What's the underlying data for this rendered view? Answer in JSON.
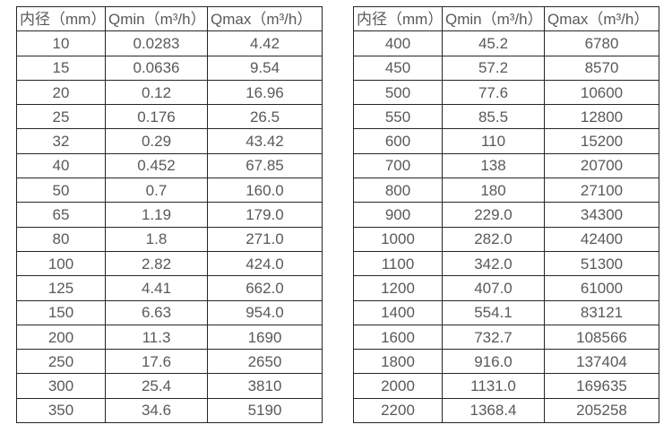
{
  "tables": [
    {
      "name": "flow-spec-table-small-diameters",
      "headers": [
        "内径（mm）",
        "Qmin（m³/h）",
        "Qmax（m³/h）"
      ],
      "rows": [
        [
          "10",
          "0.0283",
          "4.42"
        ],
        [
          "15",
          "0.0636",
          "9.54"
        ],
        [
          "20",
          "0.12",
          "16.96"
        ],
        [
          "25",
          "0.176",
          "26.5"
        ],
        [
          "32",
          "0.29",
          "43.42"
        ],
        [
          "40",
          "0.452",
          "67.85"
        ],
        [
          "50",
          "0.7",
          "160.0"
        ],
        [
          "65",
          "1.19",
          "179.0"
        ],
        [
          "80",
          "1.8",
          "271.0"
        ],
        [
          "100",
          "2.82",
          "424.0"
        ],
        [
          "125",
          "4.41",
          "662.0"
        ],
        [
          "150",
          "6.63",
          "954.0"
        ],
        [
          "200",
          "11.3",
          "1690"
        ],
        [
          "250",
          "17.6",
          "2650"
        ],
        [
          "300",
          "25.4",
          "3810"
        ],
        [
          "350",
          "34.6",
          "5190"
        ]
      ]
    },
    {
      "name": "flow-spec-table-large-diameters",
      "headers": [
        "内径（mm）",
        "Qmin（m³/h）",
        "Qmax（m³/h）"
      ],
      "rows": [
        [
          "400",
          "45.2",
          "6780"
        ],
        [
          "450",
          "57.2",
          "8570"
        ],
        [
          "500",
          "77.6",
          "10600"
        ],
        [
          "550",
          "85.5",
          "12800"
        ],
        [
          "600",
          "110",
          "15200"
        ],
        [
          "700",
          "138",
          "20700"
        ],
        [
          "800",
          "180",
          "27100"
        ],
        [
          "900",
          "229.0",
          "34300"
        ],
        [
          "1000",
          "282.0",
          "42400"
        ],
        [
          "1100",
          "342.0",
          "51300"
        ],
        [
          "1200",
          "407.0",
          "61000"
        ],
        [
          "1400",
          "554.1",
          "83121"
        ],
        [
          "1600",
          "732.7",
          "108566"
        ],
        [
          "1800",
          "916.0",
          "137404"
        ],
        [
          "2000",
          "1131.0",
          "169635"
        ],
        [
          "2200",
          "1368.4",
          "205258"
        ]
      ]
    }
  ],
  "colors": {
    "border": "#262626",
    "text": "#595959",
    "background": "#ffffff"
  }
}
